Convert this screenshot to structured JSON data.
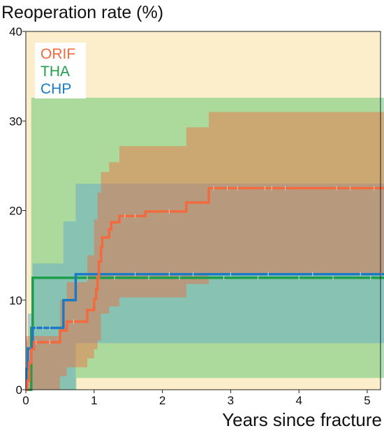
{
  "chart_data": {
    "type": "line",
    "title": "",
    "ylabel": "Reoperation rate (%)",
    "xlabel": "Years since fracture",
    "xlim": [
      0,
      5.3
    ],
    "ylim": [
      0,
      40
    ],
    "x_ticks": [
      0,
      1,
      2,
      3,
      4,
      5
    ],
    "y_ticks": [
      0,
      10,
      20,
      30,
      40
    ],
    "x_tick_labels": [
      "0",
      "1",
      "2",
      "3",
      "4",
      "5"
    ],
    "y_tick_labels": [
      "0",
      "10",
      "20",
      "30",
      "40"
    ],
    "grid": false,
    "background": "#fdeecb",
    "legend": {
      "position": "top-left",
      "entries": [
        "ORIF",
        "THA",
        "CHP"
      ]
    },
    "series": [
      {
        "name": "ORIF",
        "color": "#f26a3e",
        "band_color": "#f26a3e",
        "band_opacity": 0.45,
        "step": [
          [
            0,
            0
          ],
          [
            0.02,
            1
          ],
          [
            0.05,
            3
          ],
          [
            0.08,
            4.5
          ],
          [
            0.12,
            5.3
          ],
          [
            0.45,
            5.3
          ],
          [
            0.5,
            6.6
          ],
          [
            0.6,
            7.6
          ],
          [
            0.87,
            7.6
          ],
          [
            0.9,
            8.9
          ],
          [
            0.97,
            8.9
          ],
          [
            1.0,
            10.1
          ],
          [
            1.03,
            11.2
          ],
          [
            1.05,
            12.5
          ],
          [
            1.07,
            14.3
          ],
          [
            1.1,
            15.9
          ],
          [
            1.12,
            17.0
          ],
          [
            1.22,
            17.9
          ],
          [
            1.25,
            18.7
          ],
          [
            1.3,
            18.7
          ],
          [
            1.37,
            19.4
          ],
          [
            1.7,
            19.4
          ],
          [
            1.75,
            19.9
          ],
          [
            2.33,
            19.9
          ],
          [
            2.35,
            20.9
          ],
          [
            2.66,
            20.9
          ],
          [
            2.68,
            22.5
          ],
          [
            5.3,
            22.5
          ]
        ],
        "band_upper": [
          [
            0,
            6
          ],
          [
            0.45,
            6
          ],
          [
            0.5,
            10
          ],
          [
            0.6,
            12
          ],
          [
            0.87,
            12
          ],
          [
            0.9,
            15
          ],
          [
            0.97,
            15
          ],
          [
            1.0,
            19
          ],
          [
            1.05,
            22
          ],
          [
            1.1,
            24.3
          ],
          [
            1.22,
            25.4
          ],
          [
            1.3,
            25.4
          ],
          [
            1.37,
            27.2
          ],
          [
            2.33,
            27.2
          ],
          [
            2.35,
            29.3
          ],
          [
            2.66,
            29.3
          ],
          [
            2.68,
            31.0
          ],
          [
            5.3,
            31.0
          ]
        ],
        "band_lower": [
          [
            0,
            0
          ],
          [
            0.45,
            0
          ],
          [
            0.5,
            1.5
          ],
          [
            0.6,
            2.5
          ],
          [
            0.87,
            2.5
          ],
          [
            0.9,
            3.5
          ],
          [
            1.0,
            4.5
          ],
          [
            1.05,
            5.5
          ],
          [
            1.1,
            8.5
          ],
          [
            1.22,
            9.3
          ],
          [
            1.37,
            10.3
          ],
          [
            2.33,
            10.3
          ],
          [
            2.35,
            11.8
          ],
          [
            2.66,
            11.8
          ],
          [
            2.68,
            12.8
          ],
          [
            5.3,
            12.8
          ]
        ],
        "censor_marks": [
          [
            0.15,
            5.3
          ],
          [
            0.35,
            5.3
          ],
          [
            0.7,
            7.6
          ],
          [
            1.45,
            19.4
          ],
          [
            1.6,
            19.4
          ],
          [
            2.1,
            19.9
          ],
          [
            2.75,
            22.5
          ],
          [
            2.95,
            22.5
          ],
          [
            3.1,
            22.5
          ],
          [
            3.5,
            22.5
          ],
          [
            3.6,
            22.5
          ],
          [
            3.8,
            22.5
          ],
          [
            4.55,
            22.5
          ],
          [
            4.75,
            22.5
          ],
          [
            5.1,
            22.5
          ]
        ]
      },
      {
        "name": "THA",
        "color": "#1e9e4a",
        "band_color": "#5cc66f",
        "band_opacity": 0.5,
        "step": [
          [
            0,
            0
          ],
          [
            0.06,
            0
          ],
          [
            0.08,
            6.9
          ],
          [
            0.1,
            12.5
          ],
          [
            5.3,
            12.5
          ]
        ],
        "band_upper": [
          [
            0,
            0
          ],
          [
            0.06,
            0
          ],
          [
            0.08,
            32.6
          ],
          [
            5.3,
            32.6
          ]
        ],
        "band_lower": [
          [
            0,
            0
          ],
          [
            0.72,
            0
          ],
          [
            0.74,
            1.3
          ],
          [
            5.3,
            1.3
          ]
        ],
        "censor_marks": [
          [
            0.9,
            12.5
          ],
          [
            1.3,
            12.5
          ],
          [
            1.8,
            12.5
          ],
          [
            2.25,
            12.5
          ],
          [
            2.9,
            12.5
          ],
          [
            3.4,
            12.5
          ],
          [
            4.0,
            12.5
          ],
          [
            4.5,
            12.5
          ],
          [
            5.05,
            12.5
          ]
        ]
      },
      {
        "name": "CHP",
        "color": "#1a7bc4",
        "band_color": "#5aa4cf",
        "band_opacity": 0.45,
        "step": [
          [
            0,
            0
          ],
          [
            0.01,
            2.3
          ],
          [
            0.03,
            4.6
          ],
          [
            0.08,
            4.6
          ],
          [
            0.1,
            6.9
          ],
          [
            0.54,
            6.9
          ],
          [
            0.55,
            10.0
          ],
          [
            0.72,
            10.0
          ],
          [
            0.73,
            12.9
          ],
          [
            5.3,
            12.9
          ]
        ],
        "band_upper": [
          [
            0,
            0
          ],
          [
            0.01,
            5.5
          ],
          [
            0.03,
            8.5
          ],
          [
            0.1,
            14.1
          ],
          [
            0.54,
            14.1
          ],
          [
            0.55,
            18.8
          ],
          [
            0.72,
            18.8
          ],
          [
            0.73,
            23.0
          ],
          [
            5.3,
            23.0
          ]
        ],
        "band_lower": [
          [
            0,
            0
          ],
          [
            0.72,
            0
          ],
          [
            0.73,
            5.2
          ],
          [
            5.3,
            5.2
          ]
        ],
        "censor_marks": [
          [
            0.15,
            6.9
          ],
          [
            0.25,
            6.9
          ],
          [
            0.35,
            6.9
          ],
          [
            1.6,
            12.9
          ],
          [
            2.1,
            12.9
          ],
          [
            2.45,
            12.9
          ],
          [
            3.0,
            12.9
          ],
          [
            3.55,
            12.9
          ],
          [
            4.2,
            12.9
          ],
          [
            4.9,
            12.9
          ],
          [
            5.2,
            12.9
          ]
        ]
      }
    ]
  }
}
